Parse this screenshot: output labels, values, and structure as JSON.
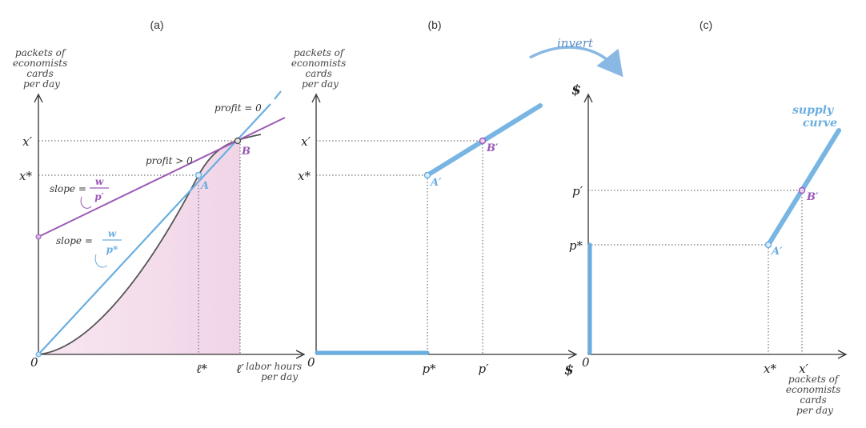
{
  "panel_labels": [
    "(a)",
    "(b)",
    "(c)"
  ],
  "axis_text": {
    "a_y": [
      "packets of",
      "economists",
      "cards",
      "per day"
    ],
    "a_x": [
      "labor hours",
      "per day"
    ],
    "b_y": [
      "packets of",
      "economists",
      "cards",
      "per day"
    ],
    "b_x": "$",
    "c_y": "$",
    "c_x": [
      "packets of",
      "economists",
      "cards",
      "per day"
    ],
    "origin": "0"
  },
  "ticks": {
    "x_prime": "x′",
    "x_star": "x*",
    "l_star": "ℓ*",
    "l_prime": "ℓ′",
    "p_star": "p*",
    "p_prime": "p′"
  },
  "annotations": {
    "profit_zero": "profit = 0",
    "profit_pos": "profit > 0",
    "slope_eq": "slope =",
    "w": "w",
    "p_prime": "p′",
    "p_star": "p*",
    "point_A": "A",
    "point_B": "B",
    "point_A_prime": "A′",
    "point_B_prime": "B′",
    "invert": "invert",
    "supply_curve": [
      "supply",
      "curve"
    ]
  },
  "colors": {
    "blue": "#6aaee0",
    "purple": "#9b59b6",
    "pink": "#f3dcec",
    "curve": "#555555"
  }
}
